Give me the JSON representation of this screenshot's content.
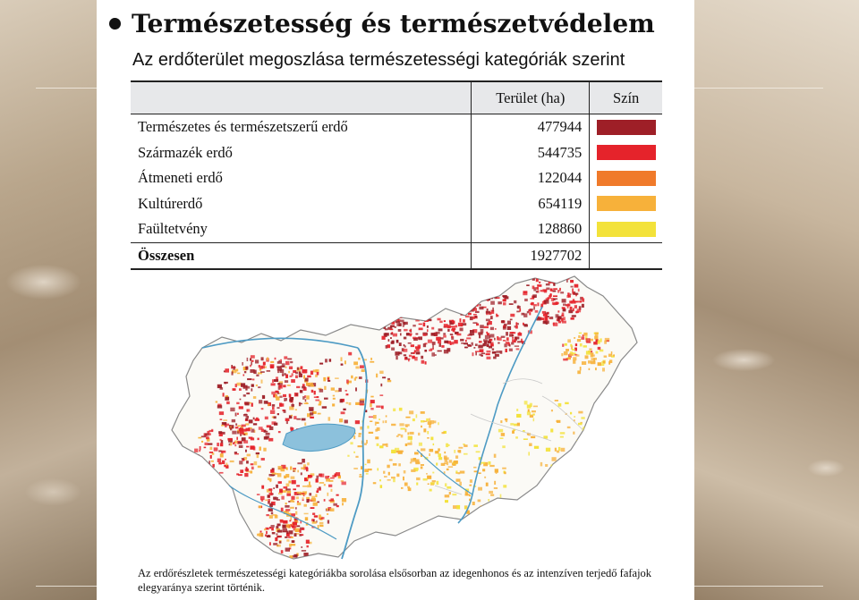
{
  "heading": "Természetesség és természetvédelem",
  "subtitle": "Az erdőterület megoszlása természetességi kategóriák szerint",
  "table": {
    "headers": [
      "",
      "Terület (ha)",
      "Szín"
    ],
    "rows": [
      {
        "label": "Természetes és természetszerű erdő",
        "value": "477944",
        "color": "#9e1f27"
      },
      {
        "label": "Származék erdő",
        "value": "544735",
        "color": "#e5232b"
      },
      {
        "label": "Átmeneti erdő",
        "value": "122044",
        "color": "#f07a2a"
      },
      {
        "label": "Kultúrerdő",
        "value": "654119",
        "color": "#f7b13a"
      },
      {
        "label": "Faültetvény",
        "value": "128860",
        "color": "#f3e23a"
      }
    ],
    "total": {
      "label": "Összesen",
      "value": "1927702"
    }
  },
  "caption": "Az erdőrészletek természetességi kategóriákba sorolása elsősorban az idegenhonos és az intenzíven terjedő fafajok elegyaránya szerint történik.",
  "colors": {
    "background_photo": "#b9a68c",
    "table_header": "#e7e8ea",
    "river": "#4e9bc4",
    "lake": "#8cc1dc"
  }
}
